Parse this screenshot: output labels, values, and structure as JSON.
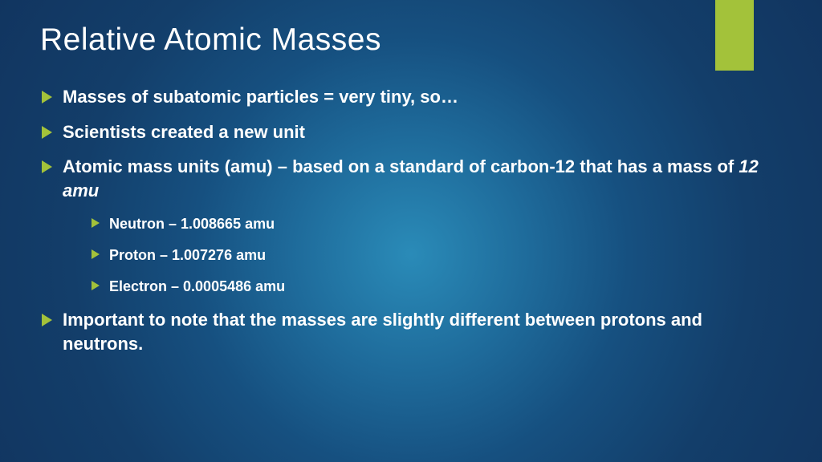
{
  "colors": {
    "accent": "#a3c23a",
    "text": "#ffffff"
  },
  "title": "Relative Atomic Masses",
  "bullets": {
    "b1": "Masses of subatomic particles = very tiny, so…",
    "b2": "Scientists created a new unit",
    "b3a": "Atomic mass units (amu) – based on a standard of carbon-12 that has a mass of ",
    "b3b": "12 amu",
    "sub1": "Neutron – 1.008665 amu",
    "sub2": "Proton – 1.007276 amu",
    "sub3": "Electron – 0.0005486 amu",
    "b4": "Important to note that the masses are slightly different between protons and neutrons."
  }
}
